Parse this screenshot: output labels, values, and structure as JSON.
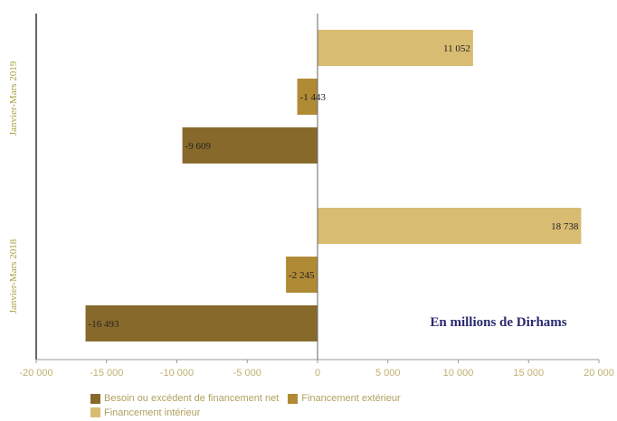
{
  "chart_data": {
    "type": "bar",
    "orientation": "horizontal",
    "categories": [
      "Janvier-Mars 2019",
      "Janvier-Mars 2018"
    ],
    "series": [
      {
        "name": "Besoin ou excédent de financement net",
        "color": "#876a2b",
        "values": [
          -9609,
          -16493
        ],
        "labels": [
          "-9 609",
          "-16 493"
        ]
      },
      {
        "name": "Financement extérieur",
        "color": "#b08a35",
        "values": [
          -1443,
          -2245
        ],
        "labels": [
          "-1 443",
          "-2 245"
        ]
      },
      {
        "name": "Financement intérieur",
        "color": "#d8bc72",
        "values": [
          11052,
          18738
        ],
        "labels": [
          "11 052",
          "18 738"
        ]
      }
    ],
    "xlim": [
      -20000,
      20000
    ],
    "xticks": [
      -20000,
      -15000,
      -10000,
      -5000,
      0,
      5000,
      10000,
      15000,
      20000
    ],
    "xtick_labels": [
      "-20 000",
      "-15 000",
      "-10 000",
      "-5 000",
      "0",
      "5 000",
      "10 000",
      "15 000",
      "20 000"
    ],
    "annotation": "En millions de Dirhams",
    "legend_position": "bottom",
    "grid": false
  }
}
